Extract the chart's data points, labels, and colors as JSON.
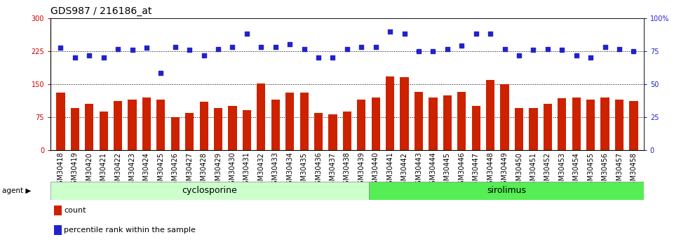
{
  "title": "GDS987 / 216186_at",
  "categories": [
    "GSM30418",
    "GSM30419",
    "GSM30420",
    "GSM30421",
    "GSM30422",
    "GSM30423",
    "GSM30424",
    "GSM30425",
    "GSM30426",
    "GSM30427",
    "GSM30428",
    "GSM30429",
    "GSM30430",
    "GSM30431",
    "GSM30432",
    "GSM30433",
    "GSM30434",
    "GSM30435",
    "GSM30436",
    "GSM30437",
    "GSM30438",
    "GSM30439",
    "GSM30440",
    "GSM30441",
    "GSM30442",
    "GSM30443",
    "GSM30444",
    "GSM30445",
    "GSM30446",
    "GSM30447",
    "GSM30448",
    "GSM30449",
    "GSM30450",
    "GSM30451",
    "GSM30452",
    "GSM30453",
    "GSM30454",
    "GSM30455",
    "GSM30456",
    "GSM30457",
    "GSM30458"
  ],
  "bar_values": [
    130,
    95,
    105,
    88,
    112,
    115,
    120,
    115,
    75,
    85,
    110,
    95,
    100,
    90,
    152,
    115,
    130,
    130,
    85,
    82,
    88,
    115,
    120,
    168,
    165,
    133,
    120,
    125,
    132,
    100,
    160,
    150,
    95,
    95,
    105,
    118,
    120,
    115,
    120,
    115,
    112
  ],
  "percentile_values": [
    233,
    210,
    215,
    210,
    230,
    228,
    232,
    175,
    234,
    228,
    215,
    230,
    235,
    265,
    235,
    235,
    240,
    230,
    210,
    210,
    230,
    235,
    235,
    270,
    265,
    225,
    225,
    230,
    237,
    265,
    265,
    230,
    215,
    228,
    230,
    228,
    215,
    210,
    235,
    230,
    225
  ],
  "cyclosporine_count": 22,
  "ylim_left": [
    0,
    300
  ],
  "yticks_left": [
    0,
    75,
    150,
    225,
    300
  ],
  "ytick_labels_left": [
    "0",
    "75",
    "150",
    "225",
    "300"
  ],
  "ytick_labels_right": [
    "0",
    "25",
    "50",
    "75",
    "100%"
  ],
  "yticks_right_vals": [
    0,
    25,
    50,
    75,
    100
  ],
  "hlines": [
    75,
    150,
    225
  ],
  "bar_color": "#cc2200",
  "dot_color": "#2222cc",
  "cyclosporine_color": "#ccffcc",
  "sirolimus_color": "#55ee55",
  "title_fontsize": 10,
  "tick_fontsize": 7,
  "label_fontsize": 8,
  "group_label_fontsize": 9
}
